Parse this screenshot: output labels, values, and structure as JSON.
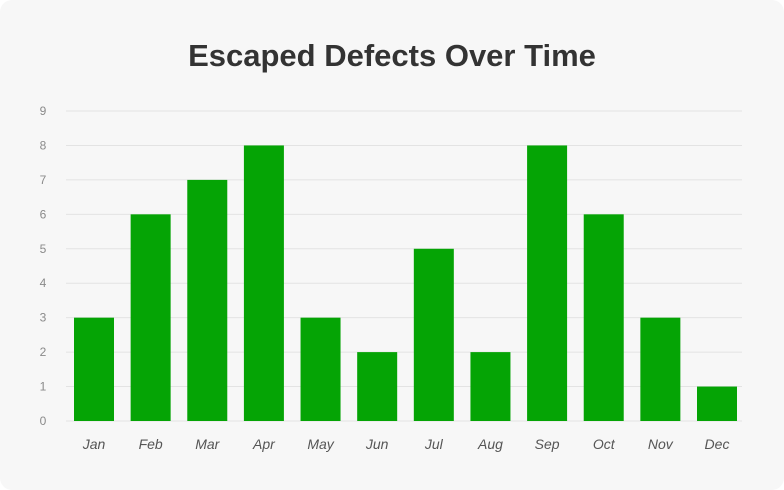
{
  "chart_data": {
    "type": "bar",
    "title": "Escaped Defects Over Time",
    "xlabel": "",
    "ylabel": "",
    "categories": [
      "Jan",
      "Feb",
      "Mar",
      "Apr",
      "May",
      "Jun",
      "Jul",
      "Aug",
      "Sep",
      "Oct",
      "Nov",
      "Dec"
    ],
    "values": [
      3,
      6,
      7,
      8,
      3,
      2,
      5,
      2,
      8,
      6,
      3,
      1
    ],
    "ylim": [
      0,
      9
    ],
    "yticks": [
      "0",
      "1",
      "2",
      "3",
      "4",
      "5",
      "6",
      "7",
      "8",
      "9"
    ],
    "grid": true,
    "legend": "none",
    "bar_color": "#05a405",
    "grid_color": "#e3e3e3"
  }
}
